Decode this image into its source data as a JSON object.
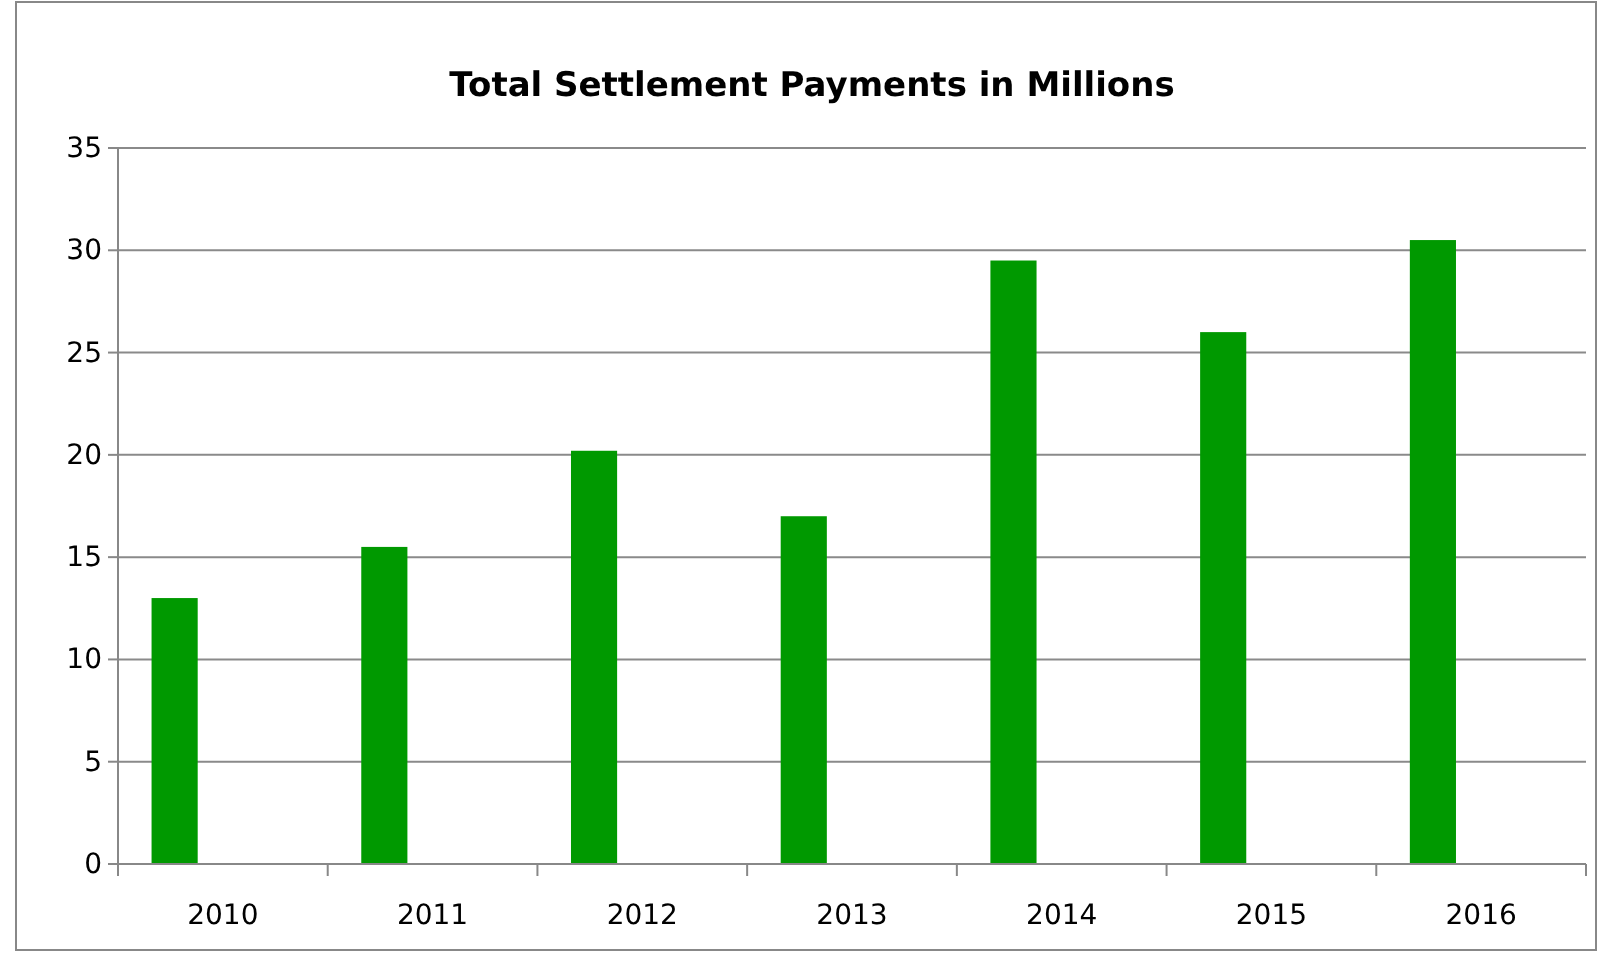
{
  "chart_data": {
    "type": "bar",
    "title": "Total Settlement Payments in Millions",
    "categories": [
      "2010",
      "2011",
      "2012",
      "2013",
      "2014",
      "2015",
      "2016"
    ],
    "values": [
      13,
      15.5,
      20.2,
      17,
      29.5,
      26,
      30.5
    ],
    "color": "#009900",
    "ylim": [
      0,
      35
    ],
    "yticks": [
      0,
      5,
      10,
      15,
      20,
      25,
      30,
      35
    ],
    "grid": "y"
  }
}
